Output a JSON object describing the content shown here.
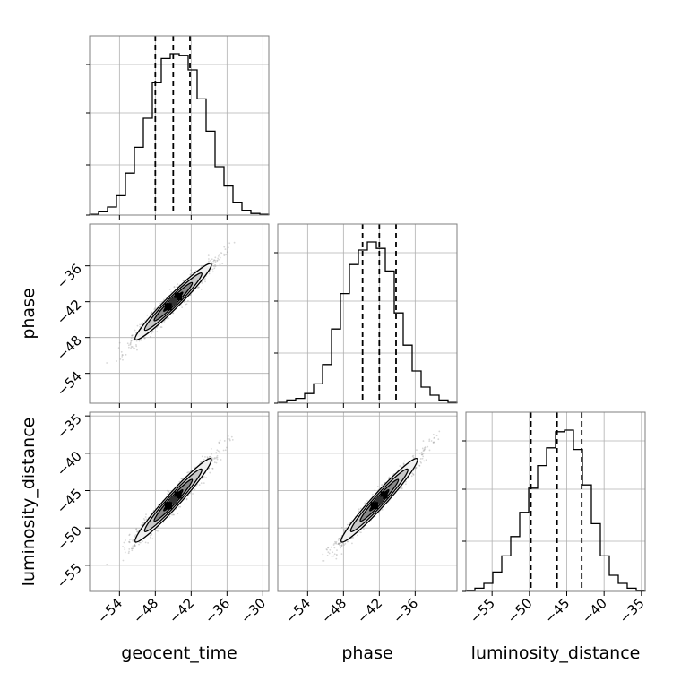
{
  "chart_data": {
    "type": "corner",
    "parameters": [
      "geocent_time",
      "phase",
      "luminosity_distance"
    ],
    "axis_labels": {
      "geocent_time": "geocent_time",
      "phase": "phase",
      "luminosity_distance": "luminosity_distance"
    },
    "ranges": {
      "geocent_time": [
        -59,
        -29
      ],
      "phase": [
        -59,
        -29
      ],
      "luminosity_distance": [
        -58.5,
        -34.5
      ]
    },
    "ticks": {
      "geocent_time": [
        -54,
        -48,
        -42,
        -36,
        -30
      ],
      "phase": [
        -54,
        -48,
        -42,
        -36
      ],
      "phase_as_x": [
        -54,
        -48,
        -42,
        -36
      ],
      "geocent_time_x": [
        -54,
        -48,
        -42,
        -36,
        -30
      ],
      "luminosity_distance": [
        -55,
        -50,
        -45,
        -40,
        -35
      ]
    },
    "tick_labels": {
      "geocent_time_x": [
        "−54",
        "−48",
        "−42",
        "−36",
        "−30"
      ],
      "phase_x": [
        "−54",
        "−48",
        "−42",
        "−36"
      ],
      "phase_y": [
        "−36",
        "−42",
        "−48",
        "−54"
      ],
      "luminosity_distance_x": [
        "−55",
        "−50",
        "−45",
        "−40",
        "−35"
      ],
      "luminosity_distance_y": [
        "−35",
        "−40",
        "−45",
        "−50",
        "−55"
      ]
    },
    "marginals": [
      {
        "parameter": "geocent_time",
        "bin_edges": [
          -59,
          -57.5,
          -56,
          -54.5,
          -53,
          -51.5,
          -50,
          -48.5,
          -47,
          -45.5,
          -44,
          -42.5,
          -41,
          -39.5,
          -38,
          -36.5,
          -35,
          -33.5,
          -32,
          -30.5,
          -29
        ],
        "counts": [
          0.5,
          2,
          5,
          12,
          26,
          42,
          60,
          82,
          97,
          100,
          99,
          90,
          72,
          52,
          30,
          18,
          8,
          3,
          1,
          0.5
        ],
        "quantiles": [
          -48,
          -45,
          -42.2
        ]
      },
      {
        "parameter": "phase",
        "bin_edges": [
          -59,
          -57.5,
          -56,
          -54.5,
          -53,
          -51.5,
          -50,
          -48.5,
          -47,
          -45.5,
          -44,
          -42.5,
          -41,
          -39.5,
          -38,
          -36.5,
          -35,
          -33.5,
          -32,
          -30.5,
          -29
        ],
        "counts": [
          0.5,
          2,
          3,
          6,
          12,
          24,
          46,
          68,
          86,
          95,
          100,
          96,
          82,
          56,
          36,
          20,
          10,
          5,
          2,
          0.5
        ],
        "quantiles": [
          -44.8,
          -42,
          -39.2
        ]
      },
      {
        "parameter": "luminosity_distance",
        "bin_edges": [
          -58.5,
          -57.3,
          -56.1,
          -54.9,
          -53.7,
          -52.5,
          -51.3,
          -50.1,
          -48.9,
          -47.7,
          -46.5,
          -45.3,
          -44.1,
          -42.9,
          -41.7,
          -40.5,
          -39.3,
          -38.1,
          -36.9,
          -35.7,
          -34.5
        ],
        "counts": [
          0.5,
          2,
          5,
          12,
          22,
          34,
          49,
          64,
          78,
          89,
          99,
          100,
          88,
          66,
          42,
          22,
          10,
          5,
          2,
          0.5
        ],
        "quantiles": [
          -49.8,
          -46.3,
          -43
        ]
      }
    ],
    "joint_panels": [
      {
        "x": "geocent_time",
        "y": "phase",
        "mean": [
          -45,
          -42
        ],
        "std": [
          3.2,
          3.2
        ],
        "correlation": 0.97
      },
      {
        "x": "geocent_time",
        "y": "luminosity_distance",
        "mean": [
          -45,
          -46.3
        ],
        "std": [
          3.2,
          2.8
        ],
        "correlation": 0.97
      },
      {
        "x": "phase",
        "y": "luminosity_distance",
        "mean": [
          -42,
          -46.3
        ],
        "std": [
          3.2,
          2.8
        ],
        "correlation": 0.97
      }
    ],
    "contour_levels_sigma": [
      0.5,
      1.0,
      1.5,
      2.0
    ],
    "grid": true,
    "style": {
      "line_color": "#000000",
      "grid_color": "#b0b0b0",
      "scatter_color": "#8c8c8c",
      "fill_colors": [
        "#f0f0f0",
        "#c8c8c8",
        "#8a8a8a",
        "#3a3a3a",
        "#000000"
      ]
    }
  }
}
